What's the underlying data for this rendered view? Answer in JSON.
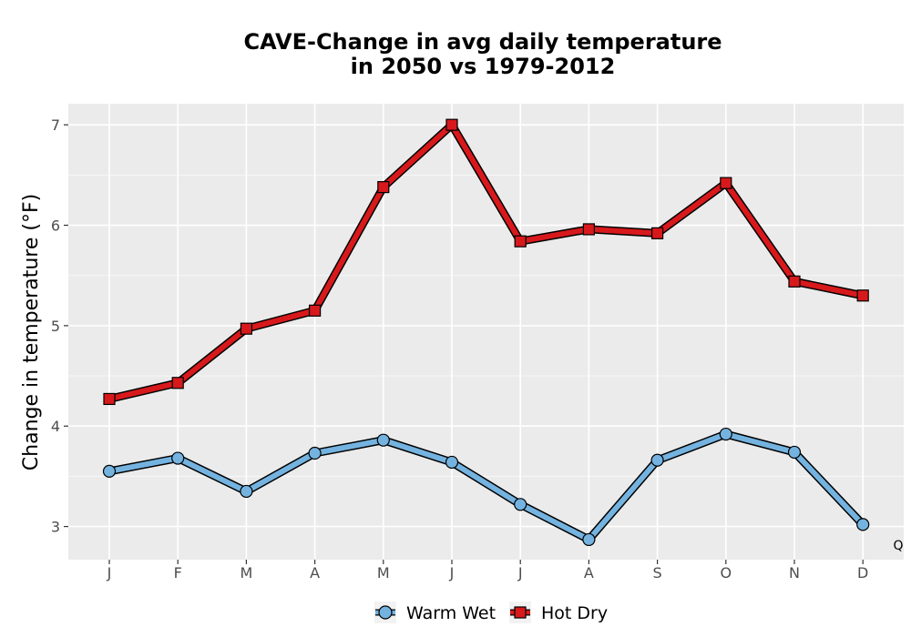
{
  "chart_data": {
    "type": "line",
    "title_lines": [
      "CAVE-Change in avg daily temperature",
      "in 2050 vs 1979-2012"
    ],
    "xlabel": "",
    "ylabel": "Change in temperature (°F)",
    "categories": [
      "J",
      "F",
      "M",
      "A",
      "M",
      "J",
      "J",
      "A",
      "S",
      "O",
      "N",
      "D"
    ],
    "ylim": [
      2.67,
      7.21
    ],
    "yticks": [
      3,
      4,
      5,
      6,
      7
    ],
    "grid": true,
    "legend_position": "bottom",
    "corner_text": "Q",
    "series": [
      {
        "name": "Warm Wet",
        "marker": "circle",
        "color": "#74b3e0",
        "values": [
          3.55,
          3.68,
          3.35,
          3.73,
          3.86,
          3.64,
          3.22,
          2.87,
          3.66,
          3.92,
          3.74,
          3.02
        ]
      },
      {
        "name": "Hot Dry",
        "marker": "square",
        "color": "#d7191c",
        "values": [
          4.27,
          4.43,
          4.97,
          5.15,
          6.38,
          7.0,
          5.84,
          5.96,
          5.92,
          6.42,
          5.44,
          5.3
        ]
      }
    ]
  }
}
